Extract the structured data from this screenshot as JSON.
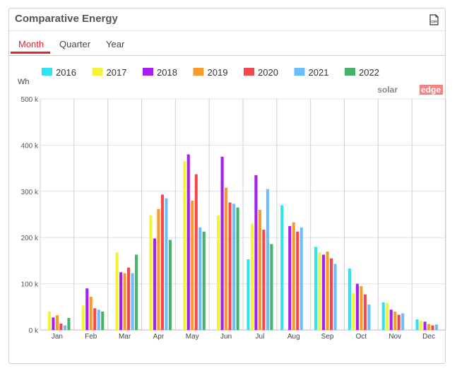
{
  "widget": {
    "title": "Comparative Energy",
    "csv_label": "CSV"
  },
  "tabs": [
    {
      "label": "Month",
      "active": true
    },
    {
      "label": "Quarter",
      "active": false
    },
    {
      "label": "Year",
      "active": false
    }
  ],
  "brand": {
    "part1": "solar",
    "part2": "edge"
  },
  "chart_data": {
    "type": "bar",
    "title": "",
    "xlabel": "",
    "ylabel": "Wh",
    "ylim": [
      0,
      500000
    ],
    "yticks": [
      "0 k",
      "100 k",
      "200 k",
      "300 k",
      "400 k",
      "500 k"
    ],
    "grid": true,
    "legend_position": "top",
    "categories": [
      "Jan",
      "Feb",
      "Mar",
      "Apr",
      "May",
      "Jun",
      "Jul",
      "Aug",
      "Sep",
      "Oct",
      "Nov",
      "Dec"
    ],
    "series": [
      {
        "name": "2016",
        "color": "#30e3ef",
        "values": [
          null,
          null,
          null,
          null,
          null,
          null,
          153000,
          270000,
          180000,
          133000,
          60000,
          23000
        ]
      },
      {
        "name": "2017",
        "color": "#f4f436",
        "values": [
          40000,
          53000,
          168000,
          248000,
          365000,
          248000,
          230000,
          null,
          168000,
          80000,
          58000,
          20000
        ]
      },
      {
        "name": "2018",
        "color": "#a61ff0",
        "values": [
          27000,
          90000,
          125000,
          198000,
          380000,
          375000,
          335000,
          225000,
          163000,
          100000,
          44000,
          18000
        ]
      },
      {
        "name": "2019",
        "color": "#f99b28",
        "values": [
          32000,
          72000,
          123000,
          262000,
          280000,
          308000,
          260000,
          233000,
          170000,
          95000,
          40000,
          13000
        ]
      },
      {
        "name": "2020",
        "color": "#f5484c",
        "values": [
          14000,
          47000,
          135000,
          293000,
          337000,
          276000,
          217000,
          213000,
          155000,
          77000,
          33000,
          10000
        ]
      },
      {
        "name": "2021",
        "color": "#6cbdfb",
        "values": [
          10000,
          44000,
          123000,
          285000,
          222000,
          273000,
          305000,
          222000,
          143000,
          55000,
          36000,
          12000
        ]
      },
      {
        "name": "2022",
        "color": "#45b36b",
        "values": [
          26000,
          40000,
          163000,
          195000,
          213000,
          265000,
          186000,
          null,
          null,
          null,
          null,
          null
        ]
      }
    ]
  }
}
